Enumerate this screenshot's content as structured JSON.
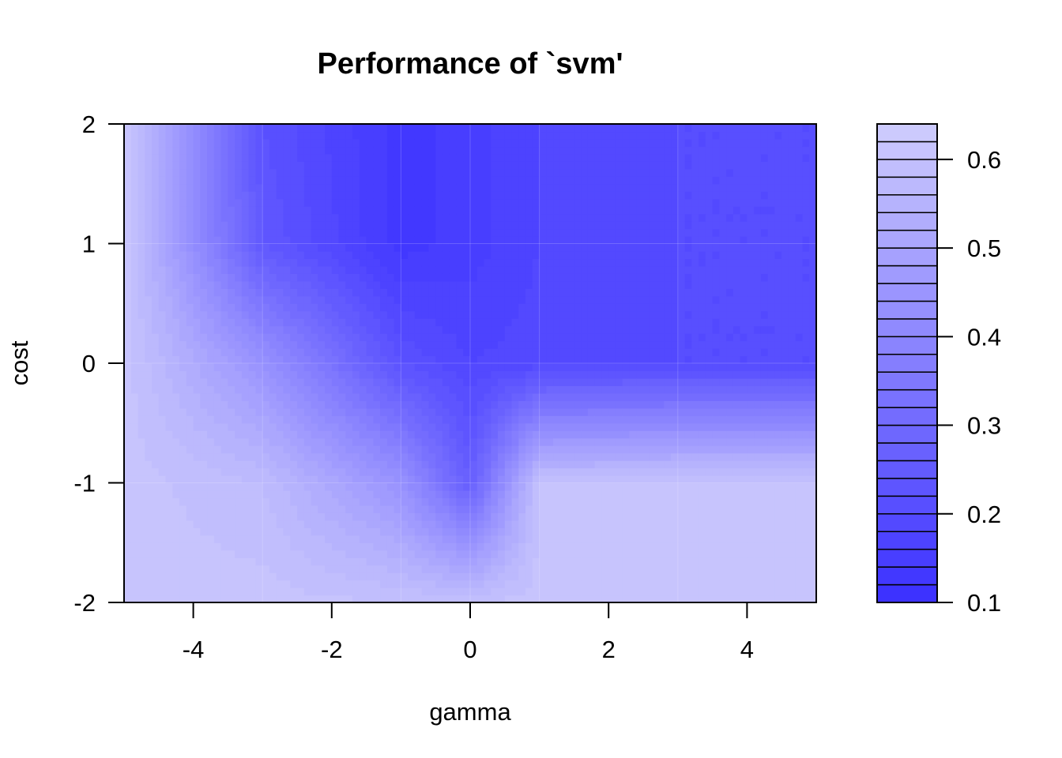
{
  "chart_data": {
    "type": "heatmap",
    "title": "Performance of `svm'",
    "xlabel": "gamma",
    "ylabel": "cost",
    "xlim": [
      -5,
      5
    ],
    "ylim": [
      -2,
      2
    ],
    "x_ticks": [
      "-4",
      "-2",
      "0",
      "2",
      "4"
    ],
    "y_ticks": [
      "-2",
      "-1",
      "0",
      "1",
      "2"
    ],
    "colorbar": {
      "range": [
        0.1,
        0.64
      ],
      "ticks": [
        "0.1",
        "0.2",
        "0.3",
        "0.4",
        "0.5",
        "0.6"
      ],
      "levels": [
        0.1,
        0.12,
        0.14,
        0.16,
        0.18,
        0.2,
        0.22,
        0.24,
        0.26,
        0.28,
        0.3,
        0.32,
        0.34,
        0.36,
        0.38,
        0.4,
        0.42,
        0.44,
        0.46,
        0.48,
        0.5,
        0.52,
        0.54,
        0.56,
        0.58,
        0.6,
        0.62,
        0.64
      ],
      "low_color": "#3a2fff",
      "high_color": "#cfcdfd"
    },
    "grid": {
      "x": [
        -5,
        -3,
        -1,
        0,
        1,
        3,
        5
      ],
      "y": [
        -2,
        -1,
        0,
        1,
        2
      ],
      "z": [
        [
          0.61,
          0.61,
          0.6,
          0.6,
          0.61,
          0.61,
          0.61
        ],
        [
          0.61,
          0.58,
          0.44,
          0.26,
          0.6,
          0.61,
          0.61
        ],
        [
          0.61,
          0.44,
          0.22,
          0.18,
          0.19,
          0.2,
          0.2
        ],
        [
          0.61,
          0.24,
          0.13,
          0.15,
          0.18,
          0.2,
          0.2
        ],
        [
          0.63,
          0.22,
          0.13,
          0.15,
          0.18,
          0.2,
          0.2
        ]
      ]
    }
  }
}
